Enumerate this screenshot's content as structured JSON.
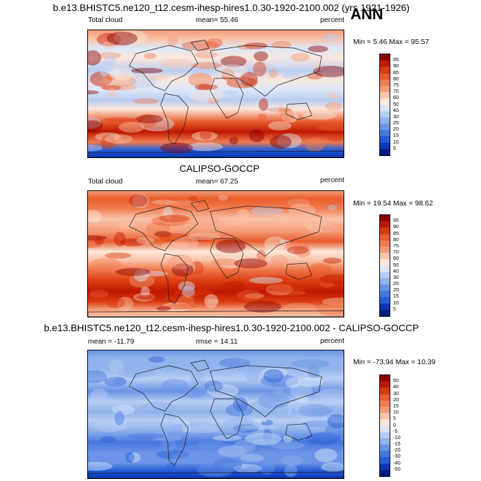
{
  "season": "ANN",
  "panels": [
    {
      "title": "b.e13.BHISTC5.ne120_t12.cesm-ihesp-hires1.0.30-1920-2100.002 (yrs 1921-1926)",
      "left_label": "Total cloud",
      "mid_label": "mean=  55.46",
      "units": "percent",
      "minmax": "Min =   5.46 Max =  95.57",
      "levels": [
        "95",
        "90",
        "85",
        "80",
        "75",
        "70",
        "60",
        "50",
        "40",
        "30",
        "25",
        "20",
        "15",
        "10",
        "5"
      ],
      "colors": [
        "#8b0000",
        "#c01800",
        "#d93a0e",
        "#e85c2c",
        "#f07c50",
        "#f49c78",
        "#f9c4aa",
        "#fbe6da",
        "#dae6f8",
        "#b8cdf2",
        "#91b2ec",
        "#6b94e6",
        "#4778df",
        "#245dd6",
        "#0b35b8",
        "#001a80"
      ],
      "style": "model"
    },
    {
      "title": "CALIPSO-GOCCP",
      "left_label": "Total cloud",
      "mid_label": "mean=  67.25",
      "units": "percent",
      "minmax": "Min =  19.54 Max =  98.62",
      "levels": [
        "95",
        "90",
        "85",
        "80",
        "75",
        "70",
        "60",
        "50",
        "40",
        "30",
        "25",
        "20",
        "15",
        "10",
        "5"
      ],
      "colors": [
        "#8b0000",
        "#c01800",
        "#d93a0e",
        "#e85c2c",
        "#f07c50",
        "#f49c78",
        "#f9c4aa",
        "#fbe6da",
        "#dae6f8",
        "#b8cdf2",
        "#91b2ec",
        "#6b94e6",
        "#4778df",
        "#245dd6",
        "#0b35b8",
        "#001a80"
      ],
      "style": "obs"
    },
    {
      "title": "b.e13.BHISTC5.ne120_t12.cesm-ihesp-hires1.0.30-1920-2100.002 - CALIPSO-GOCCP",
      "left_label": "mean = -11.79",
      "mid_label": "rmse =  14.11",
      "units": "percent",
      "minmax": "Min = -73.94 Max =  10.39",
      "levels": [
        "50",
        "40",
        "30",
        "20",
        "15",
        "10",
        "5",
        "0",
        "-5",
        "-10",
        "-15",
        "-20",
        "-30",
        "-40",
        "-50"
      ],
      "colors": [
        "#8b0000",
        "#c01800",
        "#d93a0e",
        "#e85c2c",
        "#f07c50",
        "#f49c78",
        "#f9c4aa",
        "#fbe6da",
        "#dae6f8",
        "#b8cdf2",
        "#91b2ec",
        "#6b94e6",
        "#4778df",
        "#245dd6",
        "#0b35b8",
        "#001a80"
      ],
      "style": "diff"
    }
  ]
}
